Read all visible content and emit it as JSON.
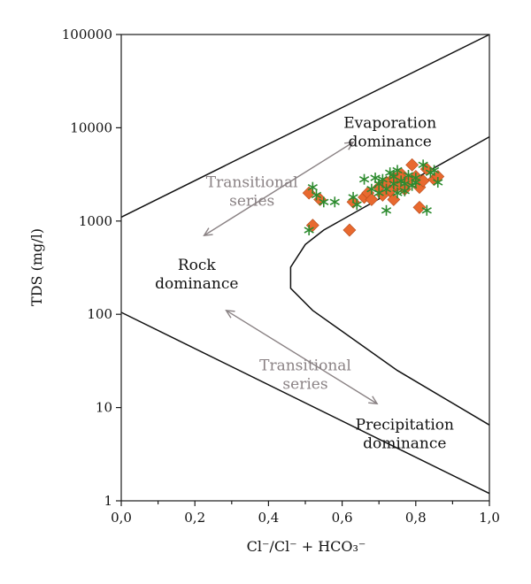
{
  "chart_data": {
    "type": "scatter",
    "title": "",
    "xlabel": "Cl⁻/Cl⁻ + HCO₃⁻",
    "ylabel": "TDS (mg/l)",
    "xlim": [
      0,
      1
    ],
    "ylim": [
      1,
      100000
    ],
    "y_scale": "log",
    "grid": false,
    "legend": "none",
    "x_ticks": [
      {
        "value": 0.0,
        "label": "0,0"
      },
      {
        "value": 0.2,
        "label": "0,2"
      },
      {
        "value": 0.4,
        "label": "0,4"
      },
      {
        "value": 0.6,
        "label": "0,6"
      },
      {
        "value": 0.8,
        "label": "0,8"
      },
      {
        "value": 1.0,
        "label": "1,0"
      }
    ],
    "y_ticks": [
      {
        "value": 1,
        "label": "1"
      },
      {
        "value": 10,
        "label": "10"
      },
      {
        "value": 100,
        "label": "100"
      },
      {
        "value": 1000,
        "label": "1000"
      },
      {
        "value": 10000,
        "label": "10000"
      },
      {
        "value": 100000,
        "label": "100000"
      }
    ],
    "boundaries": [
      {
        "points": [
          [
            0.0,
            1100
          ],
          [
            1.0,
            100000
          ]
        ]
      },
      {
        "points": [
          [
            0.0,
            105
          ],
          [
            1.0,
            1.2
          ]
        ]
      },
      {
        "points": [
          [
            1.0,
            8000
          ],
          [
            0.55,
            800
          ],
          [
            0.5,
            560
          ],
          [
            0.46,
            320
          ],
          [
            0.46,
            190
          ],
          [
            0.52,
            110
          ],
          [
            0.75,
            25
          ],
          [
            1.0,
            6.5
          ]
        ]
      }
    ],
    "annotations": [
      {
        "id": "evaporation",
        "lines": [
          "Evaporation",
          "dominance"
        ],
        "x": 0.73,
        "y": 10000
      },
      {
        "id": "rock",
        "lines": [
          "Rock",
          "dominance"
        ],
        "x": 0.205,
        "y": 300
      },
      {
        "id": "precipitation",
        "lines": [
          "Precipitation",
          "dominance"
        ],
        "x": 0.77,
        "y": 5.8
      },
      {
        "id": "transitional-upper",
        "lines": [
          "Transitional",
          "series"
        ],
        "x": 0.355,
        "y": 2300
      },
      {
        "id": "transitional-lower",
        "lines": [
          "Transitional",
          "series"
        ],
        "x": 0.5,
        "y": 25
      }
    ],
    "arrows": [
      {
        "from": [
          0.225,
          700
        ],
        "to": [
          0.63,
          7000
        ]
      },
      {
        "from": [
          0.285,
          110
        ],
        "to": [
          0.695,
          11
        ]
      }
    ],
    "series": [
      {
        "marker": "diamond",
        "color": "#e8692f",
        "points": [
          [
            0.51,
            2000
          ],
          [
            0.52,
            900
          ],
          [
            0.54,
            1700
          ],
          [
            0.62,
            800
          ],
          [
            0.63,
            1600
          ],
          [
            0.66,
            1800
          ],
          [
            0.67,
            2000
          ],
          [
            0.68,
            1700
          ],
          [
            0.7,
            2300
          ],
          [
            0.72,
            2600
          ],
          [
            0.73,
            2100
          ],
          [
            0.74,
            2900
          ],
          [
            0.74,
            1700
          ],
          [
            0.75,
            2400
          ],
          [
            0.76,
            3200
          ],
          [
            0.77,
            2200
          ],
          [
            0.78,
            2700
          ],
          [
            0.79,
            4000
          ],
          [
            0.8,
            3000
          ],
          [
            0.81,
            2300
          ],
          [
            0.81,
            1400
          ],
          [
            0.82,
            2700
          ],
          [
            0.83,
            3600
          ],
          [
            0.85,
            2800
          ],
          [
            0.86,
            3000
          ],
          [
            0.76,
            2900
          ],
          [
            0.71,
            1900
          ]
        ]
      },
      {
        "marker": "asterisk",
        "color": "#2d8b2f",
        "points": [
          [
            0.51,
            800
          ],
          [
            0.52,
            2300
          ],
          [
            0.53,
            1900
          ],
          [
            0.55,
            1600
          ],
          [
            0.58,
            1600
          ],
          [
            0.63,
            1800
          ],
          [
            0.64,
            1500
          ],
          [
            0.66,
            2800
          ],
          [
            0.68,
            2200
          ],
          [
            0.7,
            2000
          ],
          [
            0.71,
            2800
          ],
          [
            0.72,
            1300
          ],
          [
            0.72,
            2200
          ],
          [
            0.73,
            3300
          ],
          [
            0.74,
            2500
          ],
          [
            0.75,
            3500
          ],
          [
            0.75,
            2000
          ],
          [
            0.76,
            2700
          ],
          [
            0.77,
            2100
          ],
          [
            0.78,
            3100
          ],
          [
            0.79,
            2400
          ],
          [
            0.8,
            2600
          ],
          [
            0.82,
            4000
          ],
          [
            0.83,
            1300
          ],
          [
            0.84,
            3300
          ],
          [
            0.86,
            2600
          ],
          [
            0.7,
            2500
          ],
          [
            0.74,
            3000
          ],
          [
            0.77,
            2500
          ],
          [
            0.8,
            2900
          ],
          [
            0.85,
            3500
          ],
          [
            0.69,
            2900
          ]
        ]
      }
    ]
  }
}
